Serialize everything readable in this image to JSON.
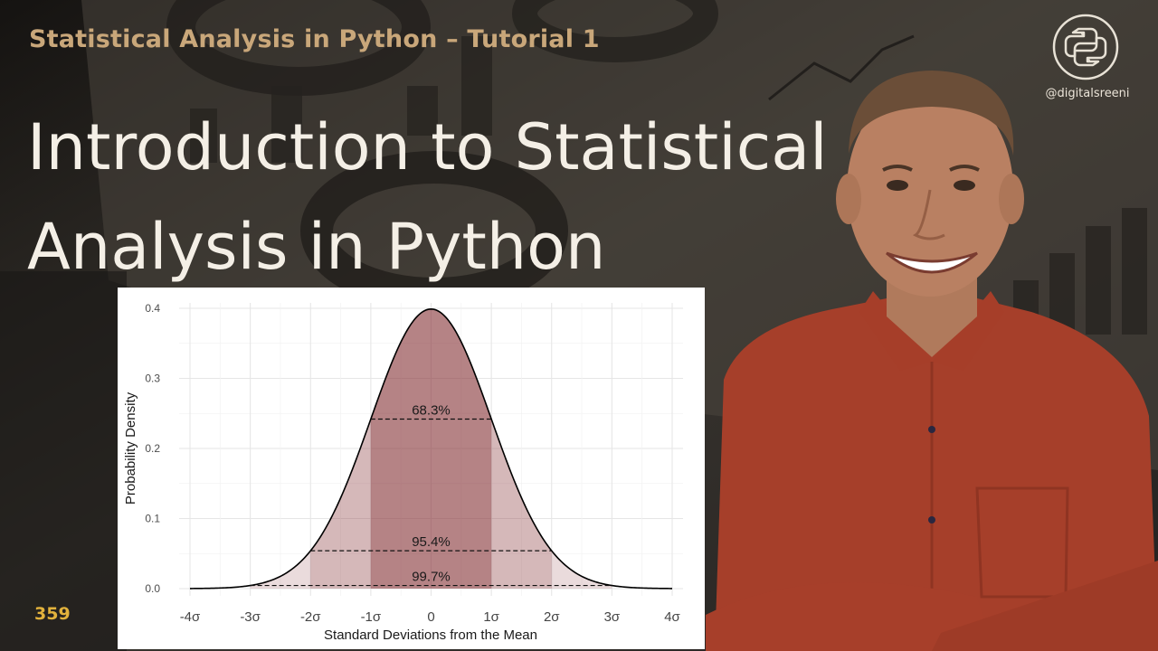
{
  "header": {
    "series_title": "Statistical Analysis in Python – Tutorial 1",
    "title_line1": "Introduction to Statistical",
    "title_line2": "Analysis in Python"
  },
  "channel": {
    "handle": "@digitalsreeni",
    "logo_icon": "python-logo-icon"
  },
  "episode_number": "359",
  "colors": {
    "series_title": "#c9a77a",
    "title": "#f4efe6",
    "episode": "#e2b23c",
    "band_fill": "#8b3a3f",
    "shirt": "#b5452e"
  },
  "chart_data": {
    "type": "area",
    "distribution": "standard normal",
    "x_range": [
      -4,
      4
    ],
    "ylim": [
      0,
      0.4
    ],
    "xlabel": "Standard Deviations from the Mean",
    "ylabel": "Probability Density",
    "x_ticks": [
      {
        "value": -4,
        "label": "-4σ"
      },
      {
        "value": -3,
        "label": "-3σ"
      },
      {
        "value": -2,
        "label": "-2σ"
      },
      {
        "value": -1,
        "label": "-1σ"
      },
      {
        "value": 0,
        "label": "0"
      },
      {
        "value": 1,
        "label": "1σ"
      },
      {
        "value": 2,
        "label": "2σ"
      },
      {
        "value": 3,
        "label": "3σ"
      },
      {
        "value": 4,
        "label": "4σ"
      }
    ],
    "y_ticks": [
      {
        "value": 0,
        "label": "0.0"
      },
      {
        "value": 0.1,
        "label": "0.1"
      },
      {
        "value": 0.2,
        "label": "0.2"
      },
      {
        "value": 0.3,
        "label": "0.3"
      },
      {
        "value": 0.4,
        "label": "0.4"
      }
    ],
    "bands": [
      {
        "from": -3,
        "to": 3,
        "label": "99.7%",
        "opacity": 0.18
      },
      {
        "from": -2,
        "to": 2,
        "label": "95.4%",
        "opacity": 0.22
      },
      {
        "from": -1,
        "to": 1,
        "label": "68.3%",
        "opacity": 0.42
      }
    ],
    "grid": true
  }
}
